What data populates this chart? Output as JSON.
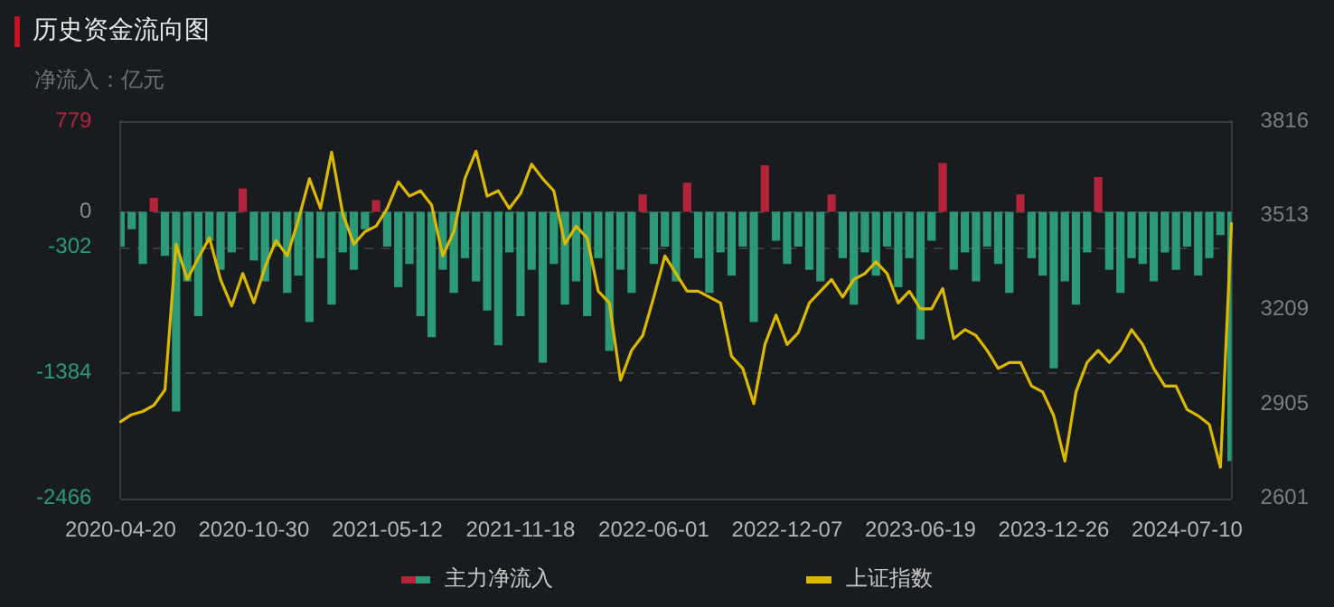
{
  "chart_data": {
    "type": "bar",
    "title": "历史资金流向图",
    "ylabel": "净流入：亿元",
    "categories": [
      "2020-04-20",
      null,
      null,
      null,
      null,
      null,
      null,
      null,
      null,
      null,
      null,
      null,
      "2020-10-30",
      null,
      null,
      null,
      null,
      null,
      null,
      null,
      null,
      null,
      null,
      null,
      "2021-05-12",
      null,
      null,
      null,
      null,
      null,
      null,
      null,
      null,
      null,
      null,
      null,
      "2021-11-18",
      null,
      null,
      null,
      null,
      null,
      null,
      null,
      null,
      null,
      null,
      null,
      "2022-06-01",
      null,
      null,
      null,
      null,
      null,
      null,
      null,
      null,
      null,
      null,
      null,
      "2022-12-07",
      null,
      null,
      null,
      null,
      null,
      null,
      null,
      null,
      null,
      null,
      null,
      "2023-06-19",
      null,
      null,
      null,
      null,
      null,
      null,
      null,
      null,
      null,
      null,
      null,
      "2023-12-26",
      null,
      null,
      null,
      null,
      null,
      null,
      null,
      null,
      null,
      null,
      null,
      "2024-07-10",
      null,
      null,
      null,
      null
    ],
    "series": [
      {
        "name": "主力净流入",
        "values": [
          -300,
          -150,
          -450,
          120,
          -380,
          -1720,
          -600,
          -900,
          -250,
          -500,
          -350,
          200,
          -420,
          -600,
          -300,
          -700,
          -550,
          -950,
          -400,
          -800,
          -350,
          -500,
          -150,
          100,
          -300,
          -650,
          -450,
          -900,
          -1080,
          -500,
          -700,
          -400,
          -600,
          -850,
          -1150,
          -350,
          -900,
          -500,
          -1300,
          -450,
          -800,
          -600,
          -900,
          -400,
          -1200,
          -500,
          -700,
          150,
          -450,
          -300,
          -600,
          250,
          -400,
          -700,
          -350,
          -550,
          -300,
          -950,
          400,
          -250,
          -450,
          -300,
          -500,
          -600,
          150,
          -400,
          -800,
          -350,
          -550,
          -300,
          -650,
          -400,
          -1100,
          -250,
          420,
          -500,
          -350,
          -600,
          -300,
          -450,
          -700,
          150,
          -400,
          -550,
          -1350,
          -600,
          -800,
          -350,
          300,
          -500,
          -700,
          -400,
          -450,
          -600,
          -350,
          -500,
          -300,
          -550,
          -400,
          -200,
          -2150
        ],
        "colors": [
          "#2c9a76",
          "#2c9a76",
          "#2c9a76",
          "#b3243a",
          "#2c9a76",
          "#2c9a76",
          "#2c9a76",
          "#2c9a76",
          "#2c9a76",
          "#2c9a76",
          "#2c9a76",
          "#b3243a",
          "#2c9a76",
          "#2c9a76",
          "#2c9a76",
          "#2c9a76",
          "#2c9a76",
          "#2c9a76",
          "#2c9a76",
          "#2c9a76",
          "#2c9a76",
          "#2c9a76",
          "#2c9a76",
          "#b3243a",
          "#2c9a76",
          "#2c9a76",
          "#2c9a76",
          "#2c9a76",
          "#2c9a76",
          "#2c9a76",
          "#2c9a76",
          "#2c9a76",
          "#2c9a76",
          "#2c9a76",
          "#2c9a76",
          "#2c9a76",
          "#2c9a76",
          "#2c9a76",
          "#2c9a76",
          "#2c9a76",
          "#2c9a76",
          "#2c9a76",
          "#2c9a76",
          "#2c9a76",
          "#2c9a76",
          "#2c9a76",
          "#2c9a76",
          "#b3243a",
          "#2c9a76",
          "#2c9a76",
          "#2c9a76",
          "#b3243a",
          "#2c9a76",
          "#2c9a76",
          "#2c9a76",
          "#2c9a76",
          "#2c9a76",
          "#2c9a76",
          "#b3243a",
          "#2c9a76",
          "#2c9a76",
          "#2c9a76",
          "#2c9a76",
          "#2c9a76",
          "#b3243a",
          "#2c9a76",
          "#2c9a76",
          "#2c9a76",
          "#2c9a76",
          "#2c9a76",
          "#2c9a76",
          "#2c9a76",
          "#2c9a76",
          "#2c9a76",
          "#b3243a",
          "#2c9a76",
          "#2c9a76",
          "#2c9a76",
          "#2c9a76",
          "#2c9a76",
          "#2c9a76",
          "#b3243a",
          "#2c9a76",
          "#2c9a76",
          "#2c9a76",
          "#2c9a76",
          "#2c9a76",
          "#2c9a76",
          "#b3243a",
          "#2c9a76",
          "#2c9a76",
          "#2c9a76",
          "#2c9a76",
          "#2c9a76",
          "#2c9a76",
          "#2c9a76",
          "#2c9a76",
          "#2c9a76",
          "#2c9a76",
          "#2c9a76",
          "#2c9a76"
        ]
      },
      {
        "name": "上证指数",
        "type": "line",
        "axis": "y2",
        "color": "#dcb900",
        "values": [
          2847,
          2870,
          2880,
          2900,
          2950,
          3420,
          3306,
          3375,
          3440,
          3306,
          3220,
          3325,
          3231,
          3346,
          3432,
          3382,
          3497,
          3631,
          3535,
          3717,
          3518,
          3420,
          3460,
          3478,
          3535,
          3621,
          3575,
          3592,
          3546,
          3382,
          3460,
          3632,
          3720,
          3575,
          3592,
          3535,
          3583,
          3678,
          3631,
          3592,
          3420,
          3478,
          3440,
          3268,
          3230,
          2981,
          3077,
          3125,
          3249,
          3382,
          3325,
          3268,
          3268,
          3249,
          3230,
          3058,
          3019,
          2905,
          3096,
          3191,
          3096,
          3134,
          3230,
          3268,
          3306,
          3249,
          3306,
          3325,
          3363,
          3325,
          3230,
          3268,
          3211,
          3211,
          3277,
          3115,
          3144,
          3125,
          3077,
          3019,
          3038,
          3038,
          2962,
          2943,
          2866,
          2720,
          2943,
          3038,
          3077,
          3038,
          3077,
          3144,
          3096,
          3019,
          2962,
          2962,
          2886,
          2866,
          2838,
          2700,
          3487
        ]
      }
    ],
    "ylim": [
      -2466,
      779
    ],
    "yticks": [
      -2466,
      -1384,
      -302,
      0,
      779
    ],
    "y2lim": [
      2601,
      3816
    ],
    "y2ticks": [
      2601,
      2905,
      3209,
      3513,
      3816
    ],
    "grid": "y",
    "legend": "bottom"
  }
}
